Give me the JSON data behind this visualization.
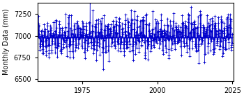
{
  "ylabel": "Monthly Data (mm)",
  "xlim": [
    1960.0,
    2025.5
  ],
  "ylim": [
    6480,
    7380
  ],
  "yticks": [
    6500,
    6750,
    7000,
    7250
  ],
  "xticks": [
    1975,
    2000,
    2025
  ],
  "line_color": "#0000cc",
  "start_year": 1960,
  "end_year": 2024,
  "seed": 42,
  "base_level": 6980,
  "trend_per_year": 0.8,
  "seasonal_amp": 120,
  "noise_std": 85,
  "tick_fontsize": 7,
  "label_fontsize": 7
}
